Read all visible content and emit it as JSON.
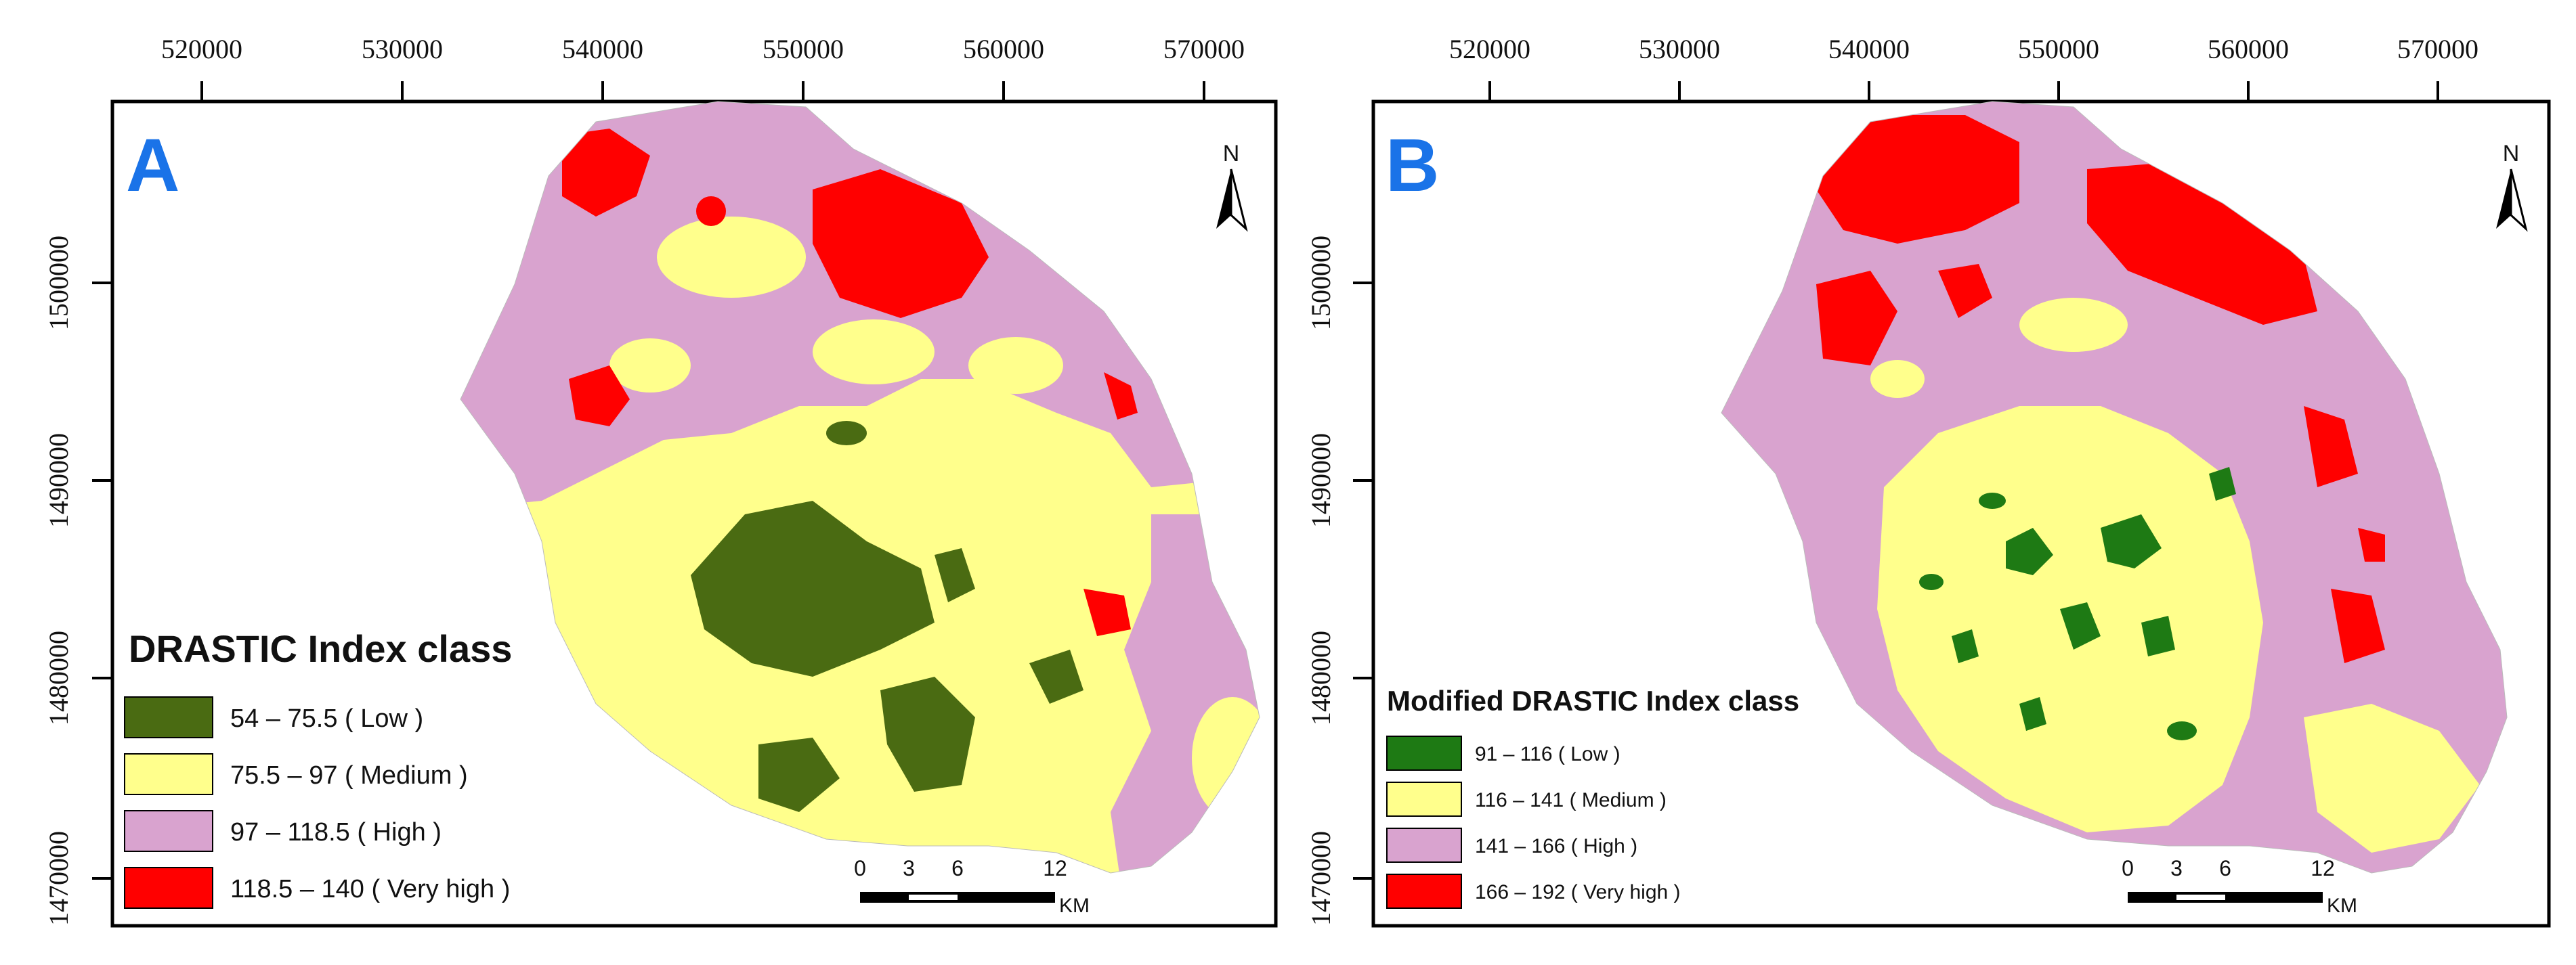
{
  "maps": [
    {
      "panel_label": "A",
      "x_ticks": [
        "520000",
        "530000",
        "540000",
        "550000",
        "560000",
        "570000"
      ],
      "y_ticks": [
        "1500000",
        "1490000",
        "1480000",
        "1470000"
      ],
      "north_label": "N",
      "legend": {
        "title": "DRASTIC Index class",
        "items": [
          {
            "label": "54 – 75.5 ( Low )",
            "color": "#4a6b12"
          },
          {
            "label": "75.5 – 97 ( Medium )",
            "color": "#ffff8c"
          },
          {
            "label": "97 – 118.5 ( High )",
            "color": "#d9a3cf"
          },
          {
            "label": "118.5 – 140 ( Very high )",
            "color": "#ff0000"
          }
        ]
      },
      "scale_bar": {
        "ticks": [
          "0",
          "3",
          "6",
          "12"
        ],
        "unit": "KM"
      }
    },
    {
      "panel_label": "B",
      "x_ticks": [
        "520000",
        "530000",
        "540000",
        "550000",
        "560000",
        "570000"
      ],
      "y_ticks": [
        "1500000",
        "1490000",
        "1480000",
        "1470000"
      ],
      "north_label": "N",
      "legend": {
        "title": "Modified DRASTIC Index class",
        "items": [
          {
            "label": "91 – 116 ( Low )",
            "color": "#1e7a14"
          },
          {
            "label": "116 – 141 ( Medium )",
            "color": "#ffff8c"
          },
          {
            "label": "141 – 166 ( High )",
            "color": "#d9a3cf"
          },
          {
            "label": "166 – 192 ( Very high )",
            "color": "#ff0000"
          }
        ]
      },
      "scale_bar": {
        "ticks": [
          "0",
          "3",
          "6",
          "12"
        ],
        "unit": "KM"
      }
    }
  ]
}
